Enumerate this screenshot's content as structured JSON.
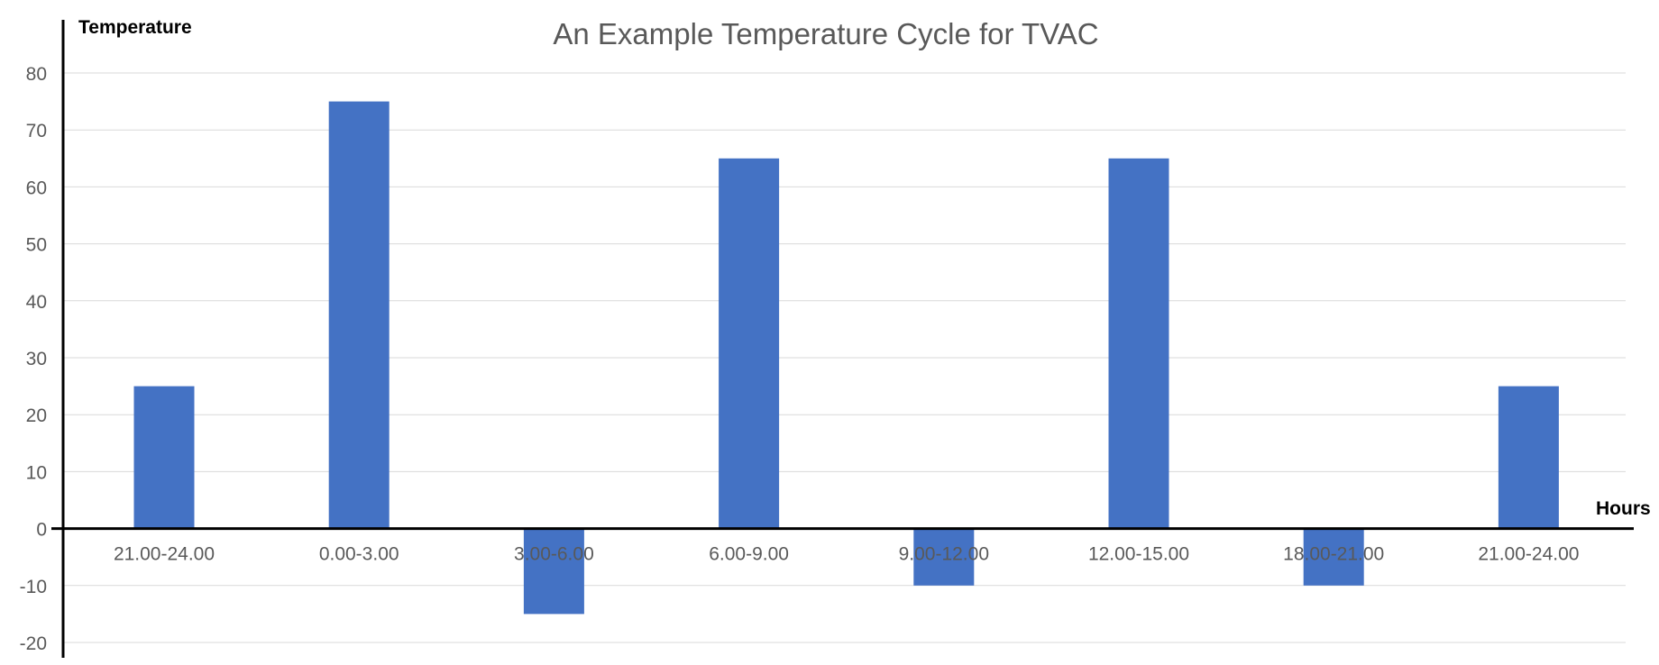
{
  "chart_data": {
    "type": "bar",
    "title": "An Example Temperature Cycle for TVAC",
    "xlabel": "Hours",
    "ylabel": "Temperature",
    "categories": [
      "21.00-24.00",
      "0.00-3.00",
      "3.00-6.00",
      "6.00-9.00",
      "9.00-12.00",
      "12.00-15.00",
      "18.00-21.00",
      "21.00-24.00"
    ],
    "series": [
      {
        "values": [
          25,
          75,
          -15,
          65,
          -10,
          65,
          -10,
          25
        ]
      }
    ],
    "ylim": [
      -20,
      80
    ],
    "yticks": [
      -20,
      -10,
      0,
      10,
      20,
      30,
      40,
      50,
      60,
      70,
      80
    ],
    "ytick_labels": [
      "-20",
      "-10",
      "0",
      "10",
      "20",
      "30",
      "40",
      "50",
      "60",
      "70",
      "80"
    ],
    "grid": true,
    "legend": "none",
    "bar_color": "#4472c4",
    "axis_color": "#000000",
    "grid_color": "#d9d9d9",
    "text_color": "#595959"
  }
}
